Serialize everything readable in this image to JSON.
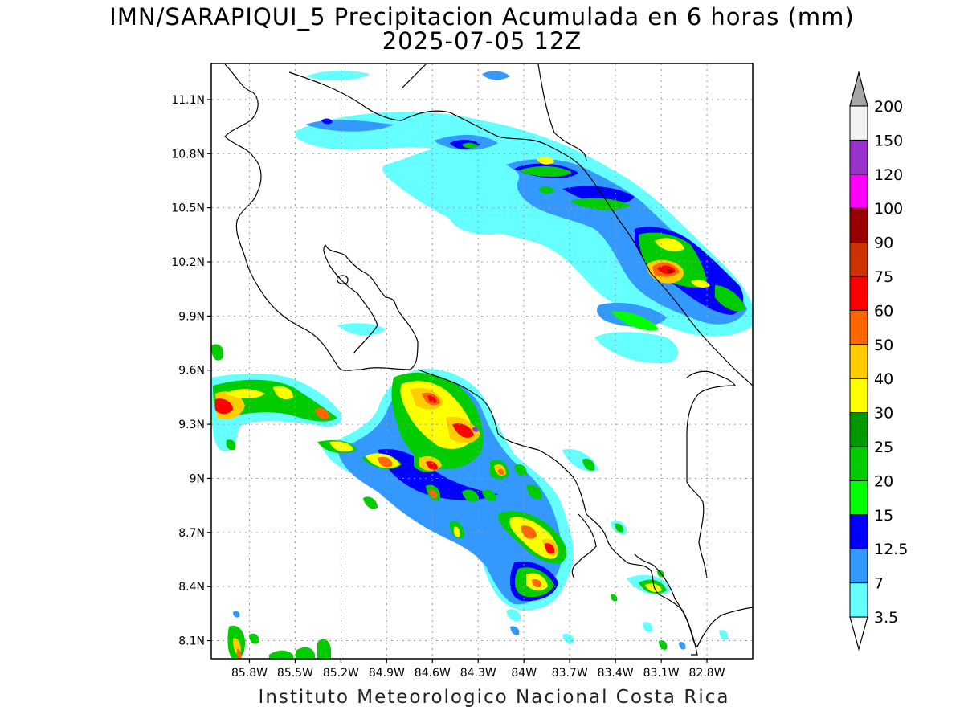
{
  "title_line1": "IMN/SARAPIQUI_5 Precipitacion Acumulada en 6 horas (mm)",
  "title_line2": "2025-07-05 12Z",
  "footer": "Instituto Meteorologico Nacional Costa Rica",
  "map": {
    "lon_range": [
      -86.05,
      -82.5
    ],
    "lat_range": [
      8.0,
      11.3
    ],
    "lat_ticks": [
      {
        "value": 11.1,
        "label": "11.1N"
      },
      {
        "value": 10.8,
        "label": "10.8N"
      },
      {
        "value": 10.5,
        "label": "10.5N"
      },
      {
        "value": 10.2,
        "label": "10.2N"
      },
      {
        "value": 9.9,
        "label": "9.9N"
      },
      {
        "value": 9.6,
        "label": "9.6N"
      },
      {
        "value": 9.3,
        "label": "9.3N"
      },
      {
        "value": 9.0,
        "label": "9N"
      },
      {
        "value": 8.7,
        "label": "8.7N"
      },
      {
        "value": 8.4,
        "label": "8.4N"
      },
      {
        "value": 8.1,
        "label": "8.1N"
      }
    ],
    "lon_ticks": [
      {
        "value": -85.8,
        "label": "85.8W"
      },
      {
        "value": -85.5,
        "label": "85.5W"
      },
      {
        "value": -85.2,
        "label": "85.2W"
      },
      {
        "value": -84.9,
        "label": "84.9W"
      },
      {
        "value": -84.6,
        "label": "84.6W"
      },
      {
        "value": -84.3,
        "label": "84.3W"
      },
      {
        "value": -84.0,
        "label": "84W"
      },
      {
        "value": -83.7,
        "label": "83.7W"
      },
      {
        "value": -83.4,
        "label": "83.4W"
      },
      {
        "value": -83.1,
        "label": "83.1W"
      },
      {
        "value": -82.8,
        "label": "82.8W"
      }
    ],
    "grid": "dotted"
  },
  "colorbar": {
    "levels": [
      {
        "label": "3.5",
        "color": "#66ffff"
      },
      {
        "label": "7",
        "color": "#3399ff"
      },
      {
        "label": "12.5",
        "color": "#0000ff"
      },
      {
        "label": "15",
        "color": "#00ff00"
      },
      {
        "label": "20",
        "color": "#00cc00"
      },
      {
        "label": "25",
        "color": "#009900"
      },
      {
        "label": "30",
        "color": "#ffff00"
      },
      {
        "label": "40",
        "color": "#ffcc00"
      },
      {
        "label": "50",
        "color": "#ff6600"
      },
      {
        "label": "60",
        "color": "#ff0000"
      },
      {
        "label": "75",
        "color": "#cc3300"
      },
      {
        "label": "90",
        "color": "#990000"
      },
      {
        "label": "100",
        "color": "#ff00ff"
      },
      {
        "label": "120",
        "color": "#9933cc"
      },
      {
        "label": "150",
        "color": "#f2f2f2"
      },
      {
        "label": "200",
        "color": "#a6a6a6"
      }
    ]
  }
}
